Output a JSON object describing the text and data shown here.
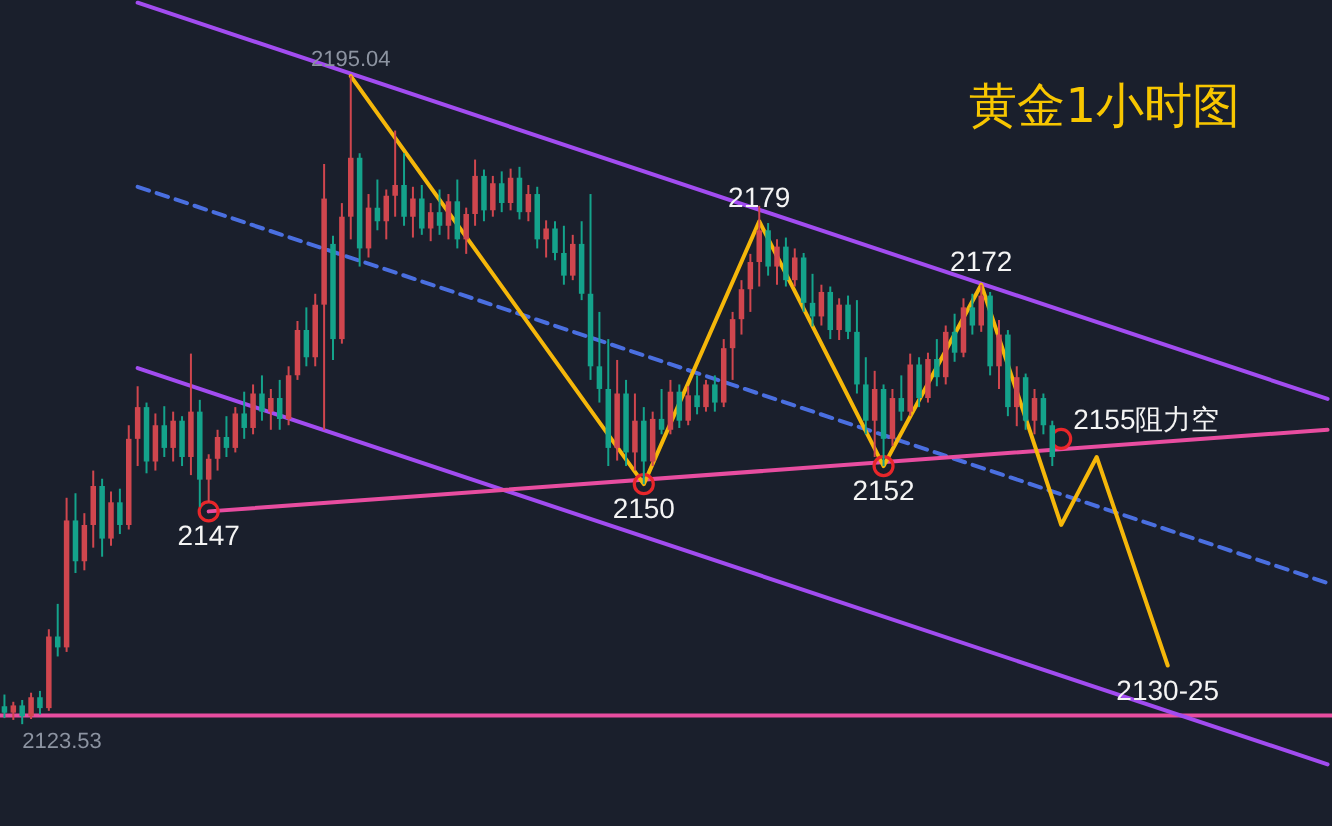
{
  "chart_data": {
    "type": "candlestick",
    "title": "黄金1小时图",
    "categories": [
      null,
      null,
      null,
      null,
      null,
      null,
      null,
      null,
      null,
      null,
      null,
      null,
      null,
      null,
      null,
      null,
      null,
      null,
      null,
      null,
      null,
      null,
      null,
      null,
      null,
      null,
      null,
      null,
      null,
      null,
      null,
      null,
      null,
      null,
      null,
      null,
      null,
      null,
      null,
      null,
      null,
      null,
      null,
      null,
      null,
      null,
      null,
      null,
      null,
      null,
      null,
      null,
      null,
      null,
      null,
      null,
      null,
      null,
      null,
      null,
      null,
      null,
      null,
      null,
      null,
      null,
      null,
      null,
      null,
      null,
      null,
      null,
      null,
      null,
      null,
      null,
      null,
      null,
      null,
      null,
      null,
      null,
      null,
      null,
      null,
      null,
      null,
      null,
      null,
      null,
      null,
      null,
      null,
      null,
      null,
      null,
      null,
      null,
      null,
      null,
      null,
      null,
      null,
      null,
      null,
      null,
      null,
      null,
      null,
      null,
      null,
      null,
      null,
      null,
      null,
      null,
      null,
      null,
      null,
      null,
      null,
      null,
      null,
      null,
      null,
      null,
      null,
      null,
      null,
      null,
      null,
      null,
      null,
      null,
      null,
      null,
      null,
      null,
      null,
      null,
      null,
      null,
      null,
      null,
      null,
      null,
      null,
      null,
      null,
      null
    ],
    "ohlc": [
      [
        2125.5,
        2126.8,
        2124.2,
        2124.8
      ],
      [
        2124.8,
        2126.0,
        2124.0,
        2125.6
      ],
      [
        2125.6,
        2126.2,
        2123.53,
        2124.4
      ],
      [
        2124.4,
        2127.0,
        2124.1,
        2126.5
      ],
      [
        2126.5,
        2127.2,
        2124.6,
        2125.3
      ],
      [
        2125.3,
        2134.0,
        2125.0,
        2133.2
      ],
      [
        2133.2,
        2136.8,
        2131.0,
        2132.0
      ],
      [
        2132.0,
        2148.5,
        2131.5,
        2146.0
      ],
      [
        2146.0,
        2149.0,
        2140.2,
        2141.5
      ],
      [
        2141.5,
        2146.8,
        2140.5,
        2145.5
      ],
      [
        2145.5,
        2151.5,
        2143.0,
        2149.8
      ],
      [
        2149.8,
        2150.6,
        2142.0,
        2144.0
      ],
      [
        2144.0,
        2149.2,
        2143.2,
        2148.0
      ],
      [
        2148.0,
        2149.5,
        2144.5,
        2145.5
      ],
      [
        2145.5,
        2156.5,
        2145.0,
        2155.0
      ],
      [
        2155.0,
        2160.8,
        2152.0,
        2158.5
      ],
      [
        2158.5,
        2159.0,
        2151.2,
        2152.5
      ],
      [
        2152.5,
        2157.8,
        2151.5,
        2156.5
      ],
      [
        2156.5,
        2158.6,
        2153.0,
        2154.0
      ],
      [
        2154.0,
        2158.0,
        2152.5,
        2157.0
      ],
      [
        2157.0,
        2157.5,
        2152.0,
        2153.0
      ],
      [
        2153.0,
        2164.4,
        2151.0,
        2158.0
      ],
      [
        2158.0,
        2159.3,
        2147.5,
        2150.5
      ],
      [
        2150.5,
        2153.3,
        2148.0,
        2152.8
      ],
      [
        2152.8,
        2156.0,
        2151.5,
        2155.2
      ],
      [
        2155.2,
        2157.5,
        2153.0,
        2154.0
      ],
      [
        2154.0,
        2158.5,
        2153.5,
        2157.8
      ],
      [
        2157.8,
        2160.2,
        2155.0,
        2156.2
      ],
      [
        2156.2,
        2161.0,
        2155.5,
        2160.0
      ],
      [
        2160.0,
        2162.0,
        2157.0,
        2158.0
      ],
      [
        2158.0,
        2160.5,
        2156.0,
        2159.5
      ],
      [
        2159.5,
        2161.5,
        2156.0,
        2157.2
      ],
      [
        2157.2,
        2163.0,
        2156.5,
        2162.0
      ],
      [
        2162.0,
        2168.0,
        2161.5,
        2167.0
      ],
      [
        2167.0,
        2169.5,
        2163.0,
        2164.0
      ],
      [
        2164.0,
        2171.0,
        2163.0,
        2169.8
      ],
      [
        2169.8,
        2185.3,
        2156.0,
        2181.5
      ],
      [
        2176.5,
        2177.4,
        2163.7,
        2166.0
      ],
      [
        2166.0,
        2181.0,
        2165.5,
        2179.5
      ],
      [
        2179.5,
        2195.04,
        2177.0,
        2186.0
      ],
      [
        2186.0,
        2186.5,
        2174.0,
        2176.0
      ],
      [
        2176.0,
        2182.0,
        2175.0,
        2180.5
      ],
      [
        2180.5,
        2183.6,
        2178.0,
        2179.0
      ],
      [
        2179.0,
        2182.5,
        2177.0,
        2181.8
      ],
      [
        2181.8,
        2189.0,
        2179.5,
        2183.0
      ],
      [
        2183.0,
        2186.5,
        2178.5,
        2179.5
      ],
      [
        2179.5,
        2182.8,
        2177.2,
        2181.5
      ],
      [
        2181.5,
        2183.0,
        2177.5,
        2178.2
      ],
      [
        2178.2,
        2181.0,
        2176.8,
        2180.0
      ],
      [
        2180.0,
        2182.5,
        2177.5,
        2178.5
      ],
      [
        2178.5,
        2182.0,
        2177.0,
        2181.2
      ],
      [
        2181.2,
        2183.6,
        2176.0,
        2177.0
      ],
      [
        2177.0,
        2180.5,
        2175.4,
        2179.8
      ],
      [
        2179.8,
        2185.8,
        2178.5,
        2184.0
      ],
      [
        2184.0,
        2184.7,
        2179.0,
        2180.2
      ],
      [
        2180.2,
        2184.0,
        2179.5,
        2183.2
      ],
      [
        2183.2,
        2184.5,
        2180.0,
        2181.0
      ],
      [
        2181.0,
        2184.8,
        2180.2,
        2183.8
      ],
      [
        2183.8,
        2185.0,
        2179.2,
        2180.0
      ],
      [
        2180.0,
        2183.0,
        2179.0,
        2182.0
      ],
      [
        2182.0,
        2182.8,
        2176.0,
        2177.0
      ],
      [
        2177.0,
        2179.1,
        2175.0,
        2178.2
      ],
      [
        2178.2,
        2179.0,
        2174.7,
        2175.5
      ],
      [
        2175.5,
        2178.5,
        2172.0,
        2173.0
      ],
      [
        2173.0,
        2177.5,
        2172.5,
        2176.5
      ],
      [
        2176.5,
        2179.0,
        2170.3,
        2171.0
      ],
      [
        2171.0,
        2182.0,
        2161.5,
        2163.0
      ],
      [
        2163.0,
        2169.0,
        2159.0,
        2160.5
      ],
      [
        2160.5,
        2166.0,
        2152.0,
        2154.0
      ],
      [
        2154.0,
        2163.7,
        2152.6,
        2160.0
      ],
      [
        2160.0,
        2161.5,
        2152.0,
        2153.5
      ],
      [
        2153.5,
        2160.0,
        2151.5,
        2157.0
      ],
      [
        2157.0,
        2158.5,
        2150.0,
        2152.5
      ],
      [
        2152.5,
        2158.0,
        2152.0,
        2157.2
      ],
      [
        2157.2,
        2160.5,
        2155.5,
        2156.0
      ],
      [
        2156.0,
        2161.5,
        2155.5,
        2160.2
      ],
      [
        2160.2,
        2161.0,
        2156.2,
        2157.0
      ],
      [
        2157.0,
        2160.8,
        2156.5,
        2159.8
      ],
      [
        2159.8,
        2162.0,
        2157.7,
        2158.5
      ],
      [
        2158.5,
        2161.5,
        2158.0,
        2161.0
      ],
      [
        2161.0,
        2162.0,
        2158.0,
        2159.0
      ],
      [
        2159.0,
        2166.0,
        2158.5,
        2165.0
      ],
      [
        2165.0,
        2169.0,
        2161.5,
        2168.2
      ],
      [
        2168.2,
        2172.5,
        2166.5,
        2171.5
      ],
      [
        2171.5,
        2175.4,
        2169.0,
        2174.5
      ],
      [
        2174.5,
        2180.7,
        2171.8,
        2178.0
      ],
      [
        2178.0,
        2178.8,
        2173.0,
        2174.0
      ],
      [
        2174.0,
        2177.0,
        2172.0,
        2176.2
      ],
      [
        2176.2,
        2177.2,
        2171.8,
        2172.5
      ],
      [
        2172.5,
        2176.0,
        2171.8,
        2175.0
      ],
      [
        2175.0,
        2175.5,
        2169.0,
        2170.0
      ],
      [
        2170.0,
        2173.2,
        2167.4,
        2168.5
      ],
      [
        2168.5,
        2172.0,
        2167.5,
        2171.2
      ],
      [
        2171.2,
        2171.8,
        2166.0,
        2167.0
      ],
      [
        2167.0,
        2170.5,
        2165.9,
        2169.8
      ],
      [
        2169.8,
        2170.8,
        2166.0,
        2166.8
      ],
      [
        2166.8,
        2170.3,
        2160.0,
        2161.0
      ],
      [
        2161.0,
        2164.0,
        2155.5,
        2157.0
      ],
      [
        2157.0,
        2162.5,
        2153.0,
        2160.5
      ],
      [
        2160.5,
        2161.0,
        2152.0,
        2155.0
      ],
      [
        2155.0,
        2160.5,
        2154.2,
        2159.5
      ],
      [
        2159.5,
        2162.0,
        2157.0,
        2158.0
      ],
      [
        2158.0,
        2164.4,
        2157.5,
        2163.2
      ],
      [
        2163.2,
        2164.0,
        2158.5,
        2159.5
      ],
      [
        2159.5,
        2164.5,
        2159.0,
        2163.8
      ],
      [
        2163.8,
        2166.0,
        2160.8,
        2161.8
      ],
      [
        2161.8,
        2167.5,
        2161.0,
        2166.8
      ],
      [
        2166.8,
        2168.8,
        2163.5,
        2164.5
      ],
      [
        2164.5,
        2170.5,
        2164.0,
        2169.5
      ],
      [
        2169.5,
        2171.0,
        2166.5,
        2167.5
      ],
      [
        2167.5,
        2172.0,
        2166.8,
        2170.8
      ],
      [
        2170.8,
        2171.2,
        2162.0,
        2163.0
      ],
      [
        2163.0,
        2168.1,
        2160.5,
        2166.5
      ],
      [
        2166.5,
        2167.0,
        2157.5,
        2158.5
      ],
      [
        2158.5,
        2163.0,
        2156.4,
        2161.8
      ],
      [
        2161.8,
        2162.2,
        2156.0,
        2157.0
      ],
      [
        2157.0,
        2160.5,
        2155.5,
        2159.5
      ],
      [
        2159.5,
        2160.0,
        2155.5,
        2156.5
      ],
      [
        2156.5,
        2157.0,
        2152.0,
        2153.0
      ],
      null,
      null,
      null,
      null,
      null,
      null,
      null,
      null,
      null,
      null,
      null,
      null,
      null,
      null,
      null,
      null,
      null,
      null,
      null,
      null,
      null,
      null,
      null,
      null,
      null,
      null,
      null,
      null,
      null,
      null,
      null
    ],
    "colors": [
      "#14a38b",
      "#d0464e",
      "#14a38b",
      "#d0464e",
      "#14a38b",
      "#d0464e",
      "#14a38b",
      "#d0464e",
      "#14a38b",
      "#d0464e",
      "#d0464e",
      "#14a38b",
      "#d0464e",
      "#14a38b",
      "#d0464e",
      "#d0464e",
      "#14a38b",
      "#d0464e",
      "#14a38b",
      "#d0464e",
      "#14a38b",
      "#d0464e",
      "#14a38b",
      "#d0464e",
      "#d0464e",
      "#14a38b",
      "#d0464e",
      "#14a38b",
      "#d0464e",
      "#14a38b",
      "#d0464e",
      "#14a38b",
      "#d0464e",
      "#d0464e",
      "#14a38b",
      "#d0464e",
      "#d0464e",
      "#14a38b",
      "#d0464e",
      "#d0464e",
      "#14a38b",
      "#d0464e",
      "#14a38b",
      "#d0464e",
      "#d0464e",
      "#14a38b",
      "#d0464e",
      "#14a38b",
      "#d0464e",
      "#14a38b",
      "#d0464e",
      "#14a38b",
      "#d0464e",
      "#d0464e",
      "#14a38b",
      "#d0464e",
      "#14a38b",
      "#d0464e",
      "#14a38b",
      "#d0464e",
      "#14a38b",
      "#d0464e",
      "#14a38b",
      "#14a38b",
      "#d0464e",
      "#14a38b",
      "#14a38b",
      "#14a38b",
      "#14a38b",
      "#d0464e",
      "#14a38b",
      "#d0464e",
      "#14a38b",
      "#d0464e",
      "#14a38b",
      "#d0464e",
      "#14a38b",
      "#d0464e",
      "#14a38b",
      "#d0464e",
      "#14a38b",
      "#d0464e",
      "#d0464e",
      "#d0464e",
      "#d0464e",
      "#d0464e",
      "#14a38b",
      "#d0464e",
      "#14a38b",
      "#d0464e",
      "#14a38b",
      "#14a38b",
      "#d0464e",
      "#14a38b",
      "#d0464e",
      "#14a38b",
      "#14a38b",
      "#14a38b",
      "#d0464e",
      "#14a38b",
      "#d0464e",
      "#14a38b",
      "#d0464e",
      "#14a38b",
      "#d0464e",
      "#14a38b",
      "#d0464e",
      "#14a38b",
      "#d0464e",
      "#14a38b",
      "#d0464e",
      "#14a38b",
      "#d0464e",
      "#14a38b",
      "#d0464e",
      "#14a38b",
      "#d0464e",
      "#14a38b",
      "#14a38b",
      null,
      null,
      null,
      null,
      null,
      null,
      null,
      null,
      null,
      null,
      null,
      null,
      null,
      null,
      null,
      null,
      null,
      null,
      null,
      null,
      null,
      null,
      null,
      null,
      null,
      null,
      null,
      null,
      null,
      null,
      null
    ],
    "series": [
      {
        "type": "line",
        "color": "#a24cf0",
        "values": [
          null,
          null,
          null,
          null,
          null,
          null,
          null,
          null,
          null,
          null,
          null,
          null,
          null,
          null,
          null,
          2203.1,
          null,
          null,
          null,
          null,
          null,
          null,
          null,
          null,
          null,
          null,
          null,
          null,
          null,
          null,
          null,
          null,
          null,
          null,
          null,
          null,
          null,
          null,
          null,
          null,
          null,
          null,
          null,
          null,
          null,
          null,
          null,
          null,
          null,
          null,
          null,
          null,
          null,
          null,
          null,
          null,
          null,
          null,
          null,
          null,
          null,
          null,
          null,
          null,
          null,
          null,
          null,
          null,
          null,
          null,
          null,
          null,
          null,
          null,
          null,
          null,
          null,
          null,
          null,
          null,
          null,
          null,
          null,
          null,
          null,
          null,
          null,
          null,
          null,
          null,
          null,
          null,
          null,
          null,
          null,
          null,
          null,
          null,
          null,
          null,
          null,
          null,
          null,
          null,
          null,
          null,
          null,
          null,
          null,
          null,
          null,
          null,
          null,
          null,
          null,
          null,
          null,
          null,
          null,
          null,
          null,
          null,
          null,
          null,
          null,
          null,
          null,
          null,
          null,
          null,
          null,
          null,
          null,
          null,
          null,
          null,
          null,
          null,
          null,
          null,
          null,
          null,
          null,
          null,
          null,
          null,
          null,
          null,
          null,
          2159.4
        ]
      },
      {
        "type": "line",
        "color": "#a24cf0",
        "values": [
          null,
          null,
          null,
          null,
          null,
          null,
          null,
          null,
          null,
          null,
          null,
          null,
          null,
          null,
          null,
          2162.8,
          null,
          null,
          null,
          null,
          null,
          null,
          null,
          null,
          null,
          null,
          null,
          null,
          null,
          null,
          null,
          null,
          null,
          null,
          null,
          null,
          null,
          null,
          null,
          null,
          null,
          null,
          null,
          null,
          null,
          null,
          null,
          null,
          null,
          null,
          null,
          null,
          null,
          null,
          null,
          null,
          null,
          null,
          null,
          null,
          null,
          null,
          null,
          null,
          null,
          null,
          null,
          null,
          null,
          null,
          null,
          null,
          null,
          null,
          null,
          null,
          null,
          null,
          null,
          null,
          null,
          null,
          null,
          null,
          null,
          null,
          null,
          null,
          null,
          null,
          null,
          null,
          null,
          null,
          null,
          null,
          null,
          null,
          null,
          null,
          null,
          null,
          null,
          null,
          null,
          null,
          null,
          null,
          null,
          null,
          null,
          null,
          null,
          null,
          null,
          null,
          null,
          null,
          null,
          null,
          null,
          null,
          null,
          null,
          null,
          null,
          null,
          null,
          null,
          null,
          null,
          null,
          null,
          null,
          null,
          null,
          null,
          null,
          null,
          null,
          null,
          null,
          null,
          null,
          null,
          null,
          null,
          null,
          null,
          2119.1
        ]
      },
      {
        "type": "line",
        "color": "#4a6fe0",
        "line_style": "dashed",
        "values": [
          null,
          null,
          null,
          null,
          null,
          null,
          null,
          null,
          null,
          null,
          null,
          null,
          null,
          null,
          null,
          2182.8,
          null,
          null,
          null,
          null,
          null,
          null,
          null,
          null,
          null,
          null,
          null,
          null,
          null,
          null,
          null,
          null,
          null,
          null,
          null,
          null,
          null,
          null,
          null,
          null,
          null,
          null,
          null,
          null,
          null,
          null,
          null,
          null,
          null,
          null,
          null,
          null,
          null,
          null,
          null,
          null,
          null,
          null,
          null,
          null,
          null,
          null,
          null,
          null,
          null,
          null,
          null,
          null,
          null,
          null,
          null,
          null,
          null,
          null,
          null,
          null,
          null,
          null,
          null,
          null,
          null,
          null,
          null,
          null,
          null,
          null,
          null,
          null,
          null,
          null,
          null,
          null,
          null,
          null,
          null,
          null,
          null,
          null,
          null,
          null,
          null,
          null,
          null,
          null,
          null,
          null,
          null,
          null,
          null,
          null,
          null,
          null,
          null,
          null,
          null,
          null,
          null,
          null,
          null,
          null,
          null,
          null,
          null,
          null,
          null,
          null,
          null,
          null,
          null,
          null,
          null,
          null,
          null,
          null,
          null,
          null,
          null,
          null,
          null,
          null,
          null,
          null,
          null,
          null,
          null,
          null,
          null,
          null,
          null,
          2139.1
        ]
      },
      {
        "type": "line",
        "color": "#e84da0",
        "values": [
          null,
          null,
          null,
          null,
          null,
          null,
          null,
          null,
          null,
          null,
          null,
          null,
          null,
          null,
          null,
          null,
          null,
          null,
          null,
          null,
          null,
          null,
          null,
          2147,
          null,
          null,
          null,
          null,
          null,
          null,
          null,
          null,
          null,
          null,
          null,
          null,
          null,
          null,
          null,
          null,
          null,
          null,
          null,
          null,
          null,
          null,
          null,
          null,
          null,
          null,
          null,
          null,
          null,
          null,
          null,
          null,
          null,
          null,
          null,
          null,
          null,
          null,
          null,
          null,
          null,
          null,
          null,
          null,
          null,
          null,
          null,
          null,
          null,
          null,
          null,
          null,
          null,
          null,
          null,
          null,
          null,
          null,
          null,
          null,
          null,
          null,
          null,
          null,
          null,
          null,
          null,
          null,
          null,
          null,
          null,
          null,
          null,
          null,
          null,
          null,
          null,
          null,
          null,
          null,
          null,
          null,
          null,
          null,
          null,
          null,
          null,
          null,
          null,
          null,
          null,
          null,
          null,
          null,
          null,
          null,
          null,
          null,
          null,
          null,
          null,
          null,
          null,
          null,
          null,
          null,
          null,
          null,
          null,
          null,
          null,
          null,
          null,
          null,
          null,
          null,
          null,
          null,
          null,
          null,
          null,
          null,
          null,
          null,
          null,
          2156
        ]
      },
      {
        "type": "scatter",
        "color": "#e8262a",
        "marker": "circle",
        "values": [
          null,
          null,
          null,
          null,
          null,
          null,
          null,
          null,
          null,
          null,
          null,
          null,
          null,
          null,
          null,
          null,
          null,
          null,
          null,
          null,
          null,
          null,
          null,
          2147,
          null,
          null,
          null,
          null,
          null,
          null,
          null,
          null,
          null,
          null,
          null,
          null,
          null,
          null,
          null,
          null,
          null,
          null,
          null,
          null,
          null,
          null,
          null,
          null,
          null,
          null,
          null,
          null,
          null,
          null,
          null,
          null,
          null,
          null,
          null,
          null,
          null,
          null,
          null,
          null,
          null,
          null,
          null,
          null,
          null,
          null,
          null,
          null,
          2150,
          null,
          null,
          null,
          null,
          null,
          null,
          null,
          null,
          null,
          null,
          null,
          null,
          null,
          null,
          null,
          null,
          null,
          null,
          null,
          null,
          null,
          null,
          null,
          null,
          null,
          null,
          2152,
          null,
          null,
          null,
          null,
          null,
          null,
          null,
          null,
          null,
          null,
          null,
          null,
          null,
          null,
          null,
          null,
          null,
          null,
          null,
          2155,
          null,
          null,
          null,
          null,
          null,
          null,
          null,
          null,
          null,
          null,
          null,
          null,
          null,
          null,
          null,
          null,
          null,
          null,
          null,
          null,
          null,
          null,
          null,
          null,
          null,
          null,
          null,
          null,
          null,
          null
        ]
      },
      {
        "type": "line",
        "color": "#f5b70a",
        "values": [
          null,
          null,
          null,
          null,
          null,
          null,
          null,
          null,
          null,
          null,
          null,
          null,
          null,
          null,
          null,
          null,
          null,
          null,
          null,
          null,
          null,
          null,
          null,
          null,
          null,
          null,
          null,
          null,
          null,
          null,
          null,
          null,
          null,
          null,
          null,
          null,
          null,
          null,
          null,
          2195,
          null,
          null,
          null,
          null,
          null,
          null,
          null,
          null,
          null,
          null,
          null,
          null,
          null,
          null,
          null,
          null,
          null,
          null,
          null,
          null,
          null,
          null,
          null,
          null,
          null,
          null,
          null,
          null,
          null,
          null,
          null,
          null,
          2150,
          null,
          null,
          null,
          null,
          null,
          null,
          null,
          null,
          null,
          null,
          null,
          null,
          2179,
          null,
          null,
          null,
          null,
          null,
          null,
          null,
          null,
          null,
          null,
          null,
          null,
          null,
          2152,
          null,
          null,
          null,
          null,
          null,
          null,
          null,
          null,
          null,
          null,
          2172,
          null,
          null,
          null,
          null,
          null,
          null,
          null,
          null,
          2145.5,
          null,
          null,
          null,
          2153,
          null,
          null,
          null,
          null,
          null,
          null,
          null,
          2130,
          null,
          null,
          null,
          null,
          null,
          null,
          null,
          null,
          null,
          null,
          null,
          null,
          null,
          null,
          null,
          null,
          null,
          null
        ]
      }
    ],
    "ref_lines": [
      {
        "axis": "y",
        "value": 2124.5,
        "color": "#e84da0"
      }
    ],
    "annotations": [
      {
        "text": "2195.04",
        "y": 2195.04
      },
      {
        "text": "2123.53",
        "y": 2123.53
      },
      {
        "text": "2147",
        "y": 2147
      },
      {
        "text": "2150",
        "y": 2150
      },
      {
        "text": "2179",
        "y": 2179
      },
      {
        "text": "2152",
        "y": 2152
      },
      {
        "text": "2172",
        "y": 2172
      },
      {
        "text": "2155阻力空",
        "y": 2155
      },
      {
        "text": "2130-25",
        "y": 2130
      }
    ],
    "ylim": [
      2112.3,
      2203.4
    ],
    "tick_labels": false
  }
}
